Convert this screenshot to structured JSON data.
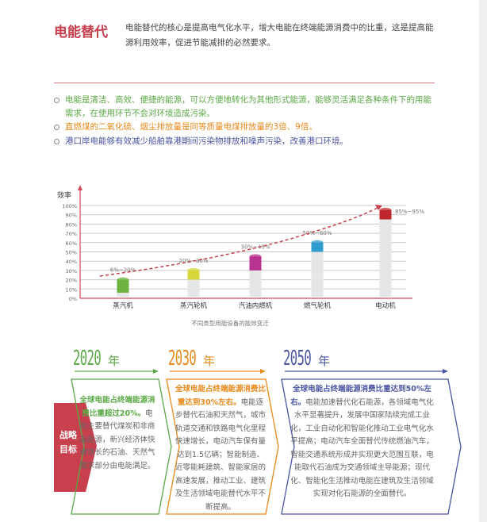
{
  "title": "电能替代",
  "intro": "电能替代的核心是提高电气化水平，增大电能在终端能源消费中的比重，这是提高能源利用效率，促进节能减排的必然要求。",
  "bullets": [
    {
      "text": "电能是清洁、高效、便捷的能源，可以方便地转化为其他形式能源，能够灵活满足各种条件下的用能需求，在使用环节不会对环境造成污染。",
      "color": "#5aa845"
    },
    {
      "text": "直燃煤的二氧化硫、烟尘排放量是同等质量电煤排放量的3倍、9倍。",
      "color": "#e8891c"
    },
    {
      "text": "港口岸电能够有效减少船舶靠港期间污染物排放和噪声污染，改善港口环境。",
      "color": "#4a55a2"
    }
  ],
  "chart_data": {
    "type": "bar",
    "title": "",
    "caption": "不同类型用能设备的能效变迁",
    "ylabel": "效率",
    "ylim": [
      0,
      100
    ],
    "yticks": [
      "0%",
      "10%",
      "20%",
      "30%",
      "40%",
      "50%",
      "60%",
      "70%",
      "80%",
      "90%",
      "100%"
    ],
    "categories": [
      "蒸汽机",
      "蒸汽轮机",
      "汽油内燃机",
      "燃气轮机",
      "电动机"
    ],
    "ranges": [
      [
        6,
        20
      ],
      [
        20,
        30
      ],
      [
        30,
        45
      ],
      [
        50,
        60
      ],
      [
        85,
        95
      ]
    ],
    "labels": [
      "6%~20%",
      "20%~30%",
      "30%~45%",
      "50%~60%",
      "85%~95%"
    ],
    "colors": [
      "#6cb33f",
      "#d6d63a",
      "#b8328f",
      "#2f9ccc",
      "#c0272d"
    ],
    "trend": "dashed arrow, increasing",
    "grid": true
  },
  "timeline": {
    "side_label": "战略目标",
    "stages": [
      {
        "year": "2020",
        "unit": "年",
        "color": "#5aa845",
        "highlight": "全球电能占终端能源消费比重超过20%。",
        "text": "电能主要替代煤炭和非商品能源，新兴经济体快速增长的石油、天然气需求部分由电能满足。"
      },
      {
        "year": "2030",
        "unit": "年",
        "color": "#e8891c",
        "highlight": "全球电能占终端能源消费比重达到30%左右。",
        "text": "电能逐步替代石油和天然气，城市轨道交通和铁路电气化里程快速增长，电动汽车保有量达到1.5亿辆；智能制造、近零能耗建筑、智能家居的高速发展，推动工业、建筑及生活领域电能替代水平不断提高。"
      },
      {
        "year": "2050",
        "unit": "年",
        "color": "#4a55a2",
        "highlight": "全球电能占终端能源消费比重达到50%左右。",
        "text": "电能加速替代化石能源，各领域电气化水平显著提升，发展中国家陆续完成工业化，工业自动化和智能化推动工业电气化水平提高；电动汽车全面替代传统燃油汽车，智能交通系统形成并实现更大范围互联，电能取代石油成为交通领域主导能源；现代化、智能化生活推动电能在建筑及生活领域实现对化石能源的全面替代。"
      }
    ]
  }
}
